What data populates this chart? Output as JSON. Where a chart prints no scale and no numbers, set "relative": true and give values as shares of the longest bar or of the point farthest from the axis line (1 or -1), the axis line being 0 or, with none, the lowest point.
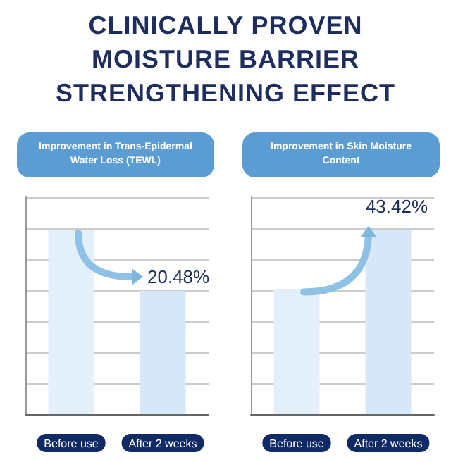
{
  "chart_data": [
    {
      "type": "bar",
      "title": "CLINICALLY PROVEN MOISTURE BARRIER STRENGTHENING EFFECT",
      "subtitle": "Improvement in Trans-Epidermal Water Loss (TEWL)",
      "categories": [
        "Before use",
        "After 2 weeks"
      ],
      "relative": true,
      "colors": [
        "#e3effb",
        "#d6e8f8"
      ],
      "values": [
        1,
        0.67
      ],
      "annotations": [
        "20.48%"
      ],
      "grid": "y"
    },
    {
      "type": "bar",
      "subtitle": "Improvement in Skin Moisture Content",
      "categories": [
        "Before use",
        "After 2 weeks"
      ],
      "relative": true,
      "colors": [
        "#e3effb",
        "#d6e8f8"
      ],
      "values": [
        0.68,
        1
      ],
      "annotations": [
        "43.42%"
      ],
      "grid": "y"
    }
  ]
}
